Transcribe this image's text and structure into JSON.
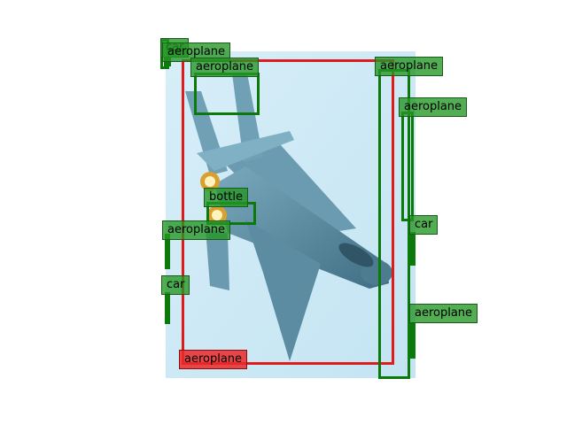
{
  "image": {
    "subject": "fighter jet flying against pale blue sky",
    "colors": {
      "sky": "#cfeaf6",
      "jet": "#5f8fa6",
      "detection": "#0b7a0b",
      "ground_truth": "#e01b1b"
    }
  },
  "detections": [
    {
      "label": "car"
    },
    {
      "label": "aeroplane"
    },
    {
      "label": "aeroplane"
    },
    {
      "label": "aeroplane"
    },
    {
      "label": "aeroplane"
    },
    {
      "label": "car"
    },
    {
      "label": "bottle"
    },
    {
      "label": "aeroplane"
    },
    {
      "label": "car"
    },
    {
      "label": "aeroplane"
    }
  ],
  "ground_truth": [
    {
      "label": "aeroplane"
    }
  ]
}
